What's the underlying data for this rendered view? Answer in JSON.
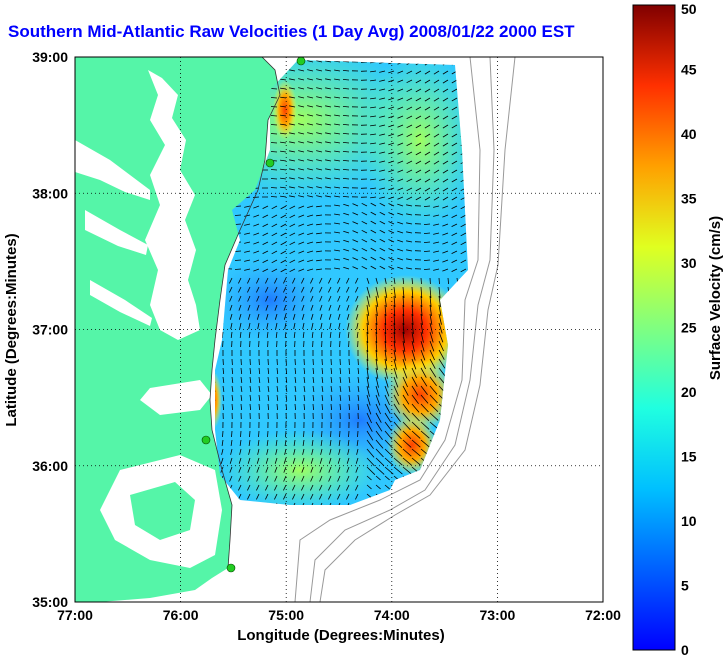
{
  "title": "Southern Mid-Atlantic Raw Velocities (1 Day Avg) 2008/01/22 2000 EST",
  "map": {
    "xlabel": "Longitude (Degrees:Minutes)",
    "ylabel": "Latitude (Degrees:Minutes)",
    "x_ticks": [
      "77:00",
      "76:00",
      "75:00",
      "74:00",
      "73:00",
      "72:00"
    ],
    "y_ticks": [
      "39:00",
      "38:00",
      "37:00",
      "36:00",
      "35:00"
    ],
    "x_range": [
      -77,
      -72
    ],
    "y_range": [
      35,
      39
    ],
    "land_color": "#55f5a8",
    "water_color": "#ffffff",
    "vector_color": "#000000",
    "site_marker_color": "#22cc22"
  },
  "colorbar": {
    "label": "Surface Velocity (cm/s)",
    "min": 0,
    "max": 50,
    "tick_labels": [
      "0",
      "5",
      "10",
      "15",
      "20",
      "25",
      "30",
      "35",
      "40",
      "45",
      "50"
    ],
    "colormap": "jet"
  }
}
